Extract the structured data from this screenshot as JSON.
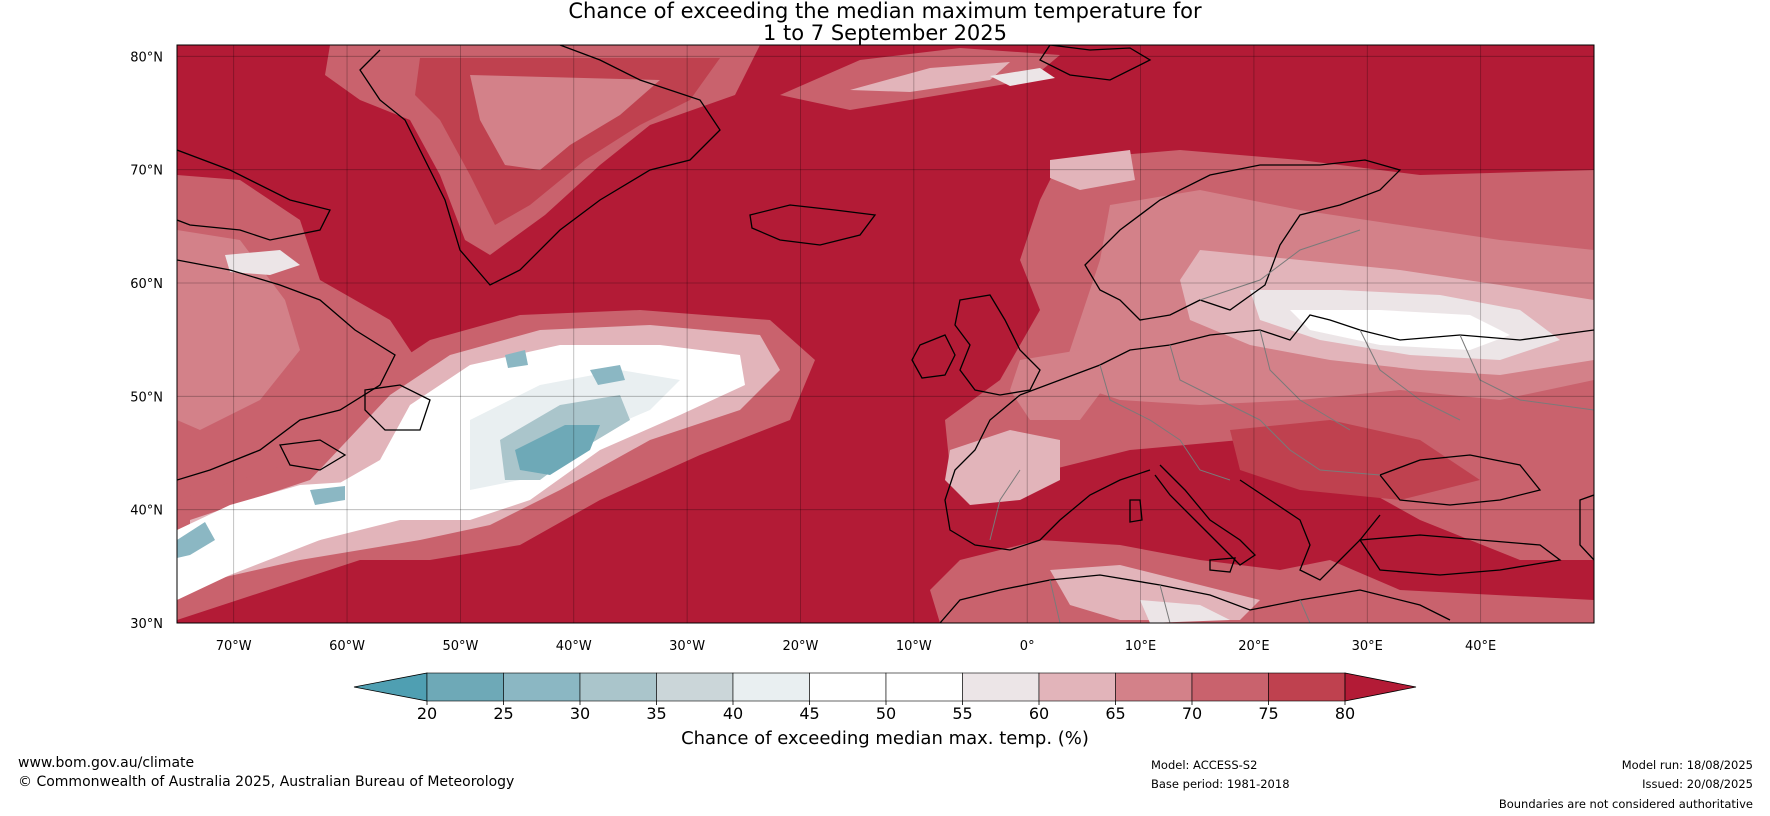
{
  "title": {
    "line1": "Chance of exceeding the median maximum temperature for",
    "line2": "1 to 7 September 2025"
  },
  "map": {
    "lat_labels": [
      "80°N",
      "70°N",
      "60°N",
      "50°N",
      "40°N",
      "30°N"
    ],
    "lon_labels": [
      "70°W",
      "60°W",
      "50°W",
      "40°W",
      "30°W",
      "20°W",
      "10°W",
      "0°",
      "10°E",
      "20°E",
      "30°E",
      "40°E"
    ],
    "extent": {
      "lon": [
        -75,
        50
      ],
      "lat": [
        30,
        81
      ]
    },
    "colors": {
      "dominant": "#b31b36",
      "land_outline": "#000000",
      "border": "#7a7a7a"
    }
  },
  "colorbar": {
    "ticks": [
      "20",
      "25",
      "30",
      "35",
      "40",
      "45",
      "50",
      "55",
      "60",
      "65",
      "70",
      "75",
      "80"
    ],
    "label": "Chance of exceeding median max. temp. (%)",
    "colors": [
      "#4f9fb2",
      "#6ea9b7",
      "#8bb7c3",
      "#aac5cb",
      "#cbd6d9",
      "#e9eff1",
      "#ffffff",
      "#ffffff",
      "#ece5e7",
      "#e2b4ba",
      "#d38189",
      "#c9626d",
      "#bf414f",
      "#b31b36"
    ]
  },
  "footer": {
    "url": "www.bom.gov.au/climate",
    "copyright": "© Commonwealth of Australia 2025, Australian Bureau of Meteorology",
    "model": "Model: ACCESS-S2",
    "base_period": "Base period: 1981-2018",
    "model_run": "Model run: 18/08/2025",
    "issued": "Issued: 20/08/2025",
    "boundaries": "Boundaries are not considered authoritative"
  }
}
